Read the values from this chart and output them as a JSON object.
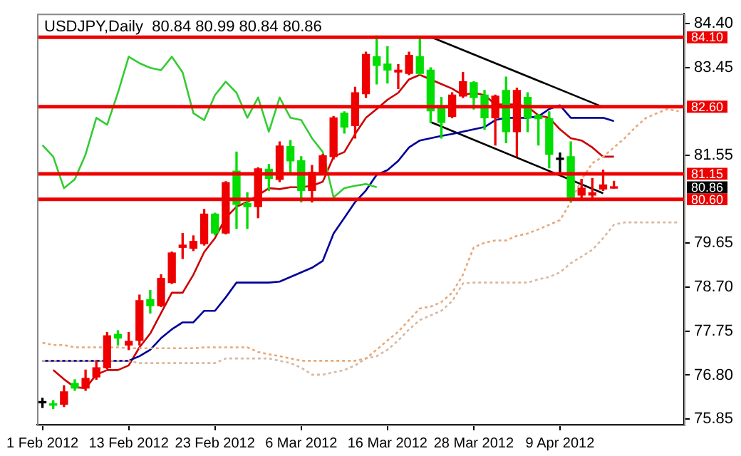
{
  "chart_data": {
    "type": "candlestick",
    "title": "USDJPY,Daily  80.84 80.99 80.84 80.86",
    "categories": [
      "1 Feb 2012",
      null,
      null,
      null,
      null,
      null,
      null,
      null,
      "13 Feb 2012",
      null,
      null,
      null,
      null,
      null,
      null,
      null,
      "23 Feb 2012",
      null,
      null,
      null,
      null,
      null,
      null,
      null,
      "6 Mar 2012",
      null,
      null,
      null,
      null,
      null,
      null,
      null,
      "16 Mar 2012",
      null,
      null,
      null,
      null,
      null,
      null,
      null,
      "28 Mar 2012",
      null,
      null,
      null,
      null,
      null,
      null,
      null,
      "9 Apr 2012",
      null,
      null,
      null,
      null,
      null,
      null,
      null,
      null,
      null,
      null,
      null
    ],
    "series": [
      {
        "type": "line",
        "color": "#e8a878",
        "line_style": "dotted",
        "values": [
          77.5,
          77.45,
          77.45,
          77.4,
          77.4,
          77.4,
          77.4,
          77.4,
          77.38,
          77.38,
          77.38,
          77.38,
          77.38,
          77.38,
          77.38,
          77.4,
          77.4,
          77.4,
          77.4,
          77.4,
          77.3,
          77.25,
          77.21,
          77.16,
          77.11,
          77.11,
          77.11,
          77.11,
          77.11,
          77.11,
          77.16,
          77.35,
          77.55,
          77.74,
          77.99,
          78.24,
          78.28,
          78.38,
          78.58,
          78.97,
          79.56,
          79.66,
          79.71,
          79.71,
          79.81,
          79.86,
          79.95,
          80.05,
          80.15,
          80.54,
          81.03,
          81.38,
          81.52,
          81.72,
          81.92,
          82.16,
          82.36,
          82.46,
          82.55,
          82.5
        ]
      },
      {
        "type": "line",
        "color": "#d8b8a0",
        "line_style": "dotted",
        "values": [
          77.11,
          77.11,
          77.11,
          77.11,
          77.11,
          77.11,
          77.11,
          77.11,
          77.11,
          77.06,
          77.06,
          77.06,
          77.06,
          77.06,
          77.06,
          77.06,
          77.06,
          77.16,
          77.16,
          77.16,
          77.16,
          77.16,
          77.11,
          77.06,
          76.96,
          76.81,
          76.81,
          76.86,
          76.91,
          77.01,
          77.16,
          77.21,
          77.35,
          77.55,
          77.79,
          77.99,
          78.09,
          78.19,
          78.4,
          78.78,
          78.8,
          78.8,
          78.8,
          78.8,
          78.8,
          78.8,
          78.87,
          78.92,
          79.02,
          79.22,
          79.36,
          79.51,
          79.76,
          80.05,
          80.1,
          80.1,
          80.1,
          80.1,
          80.1,
          80.1
        ]
      },
      {
        "type": "line",
        "color": "#33cc33",
        "values": [
          81.77,
          81.52,
          80.84,
          81.03,
          81.57,
          82.36,
          82.21,
          82.9,
          83.68,
          83.54,
          83.44,
          83.39,
          83.68,
          83.34,
          82.46,
          82.31,
          82.85,
          83.14,
          82.9,
          82.36,
          82.8,
          82.06,
          82.8,
          82.36,
          82.31,
          81.92,
          81.62,
          80.64,
          80.84,
          80.89,
          80.93,
          80.86,
          null,
          null,
          null,
          null,
          null,
          null,
          null,
          null,
          null,
          null,
          null,
          null,
          null,
          null,
          null,
          null,
          null,
          null,
          null,
          null,
          null,
          null,
          null,
          null,
          null,
          null,
          null,
          null
        ]
      },
      {
        "type": "line",
        "color": "#000099",
        "values": [
          77.11,
          77.11,
          77.11,
          77.11,
          77.11,
          77.11,
          null,
          77.11,
          77.11,
          77.21,
          77.35,
          77.6,
          77.79,
          77.94,
          77.94,
          78.19,
          78.19,
          78.48,
          78.8,
          78.8,
          78.8,
          78.8,
          78.82,
          78.92,
          79.02,
          79.12,
          79.27,
          79.86,
          80.2,
          80.54,
          80.79,
          81.13,
          81.23,
          81.43,
          81.72,
          81.87,
          81.92,
          81.97,
          82.01,
          82.06,
          82.11,
          82.16,
          82.31,
          82.36,
          82.36,
          82.36,
          82.39,
          82.55,
          82.63,
          82.36,
          82.36,
          82.36,
          82.36,
          82.29,
          null,
          null,
          null,
          null,
          null,
          null
        ]
      },
      {
        "type": "line",
        "color": "#cc0000",
        "values": [
          null,
          76.91,
          76.71,
          76.54,
          76.52,
          76.81,
          76.91,
          76.91,
          77.01,
          77.4,
          77.7,
          78.14,
          78.58,
          78.58,
          78.97,
          79.46,
          79.76,
          80.2,
          80.44,
          80.54,
          80.69,
          80.84,
          80.82,
          80.86,
          80.86,
          80.89,
          80.98,
          81.52,
          81.62,
          82.01,
          82.36,
          82.55,
          82.75,
          82.9,
          83.19,
          83.29,
          83.19,
          83.09,
          82.99,
          82.85,
          82.9,
          82.85,
          82.65,
          82.65,
          82.65,
          82.6,
          82.41,
          82.36,
          82.11,
          81.92,
          81.87,
          81.72,
          81.52,
          81.52,
          null,
          null,
          null,
          null,
          null,
          null
        ]
      },
      {
        "type": "line",
        "color": "#000000",
        "values": [
          null,
          null,
          null,
          null,
          null,
          null,
          null,
          null,
          null,
          null,
          null,
          null,
          null,
          null,
          null,
          null,
          null,
          null,
          null,
          null,
          null,
          null,
          null,
          null,
          null,
          null,
          null,
          null,
          null,
          null,
          null,
          null,
          null,
          null,
          null,
          null,
          84.11,
          null,
          null,
          null,
          null,
          null,
          null,
          null,
          null,
          null,
          null,
          null,
          null,
          null,
          null,
          null,
          82.59,
          null,
          null,
          null,
          null,
          null,
          null,
          null
        ]
      },
      {
        "type": "line",
        "color": "#000000",
        "values": [
          null,
          null,
          null,
          null,
          null,
          null,
          null,
          null,
          null,
          null,
          null,
          null,
          null,
          null,
          null,
          null,
          null,
          null,
          null,
          null,
          null,
          null,
          null,
          null,
          null,
          null,
          null,
          null,
          null,
          null,
          null,
          null,
          null,
          null,
          null,
          null,
          82.27,
          null,
          null,
          null,
          null,
          null,
          null,
          null,
          null,
          null,
          null,
          null,
          null,
          null,
          null,
          null,
          80.73,
          null,
          null,
          null,
          null,
          null,
          null,
          null
        ]
      },
      {
        "type": "candlestick",
        "ohlc": [
          [
            76.2,
            76.3,
            76.1,
            76.2
          ],
          [
            76.18,
            76.25,
            76.08,
            76.15
          ],
          [
            76.17,
            76.57,
            76.12,
            76.44
          ],
          [
            76.62,
            76.7,
            76.47,
            76.52
          ],
          [
            76.52,
            76.91,
            76.47,
            76.73
          ],
          [
            76.76,
            77.11,
            76.71,
            76.96
          ],
          [
            76.96,
            77.72,
            76.94,
            77.65
          ],
          [
            77.68,
            77.76,
            77.45,
            77.6
          ],
          [
            77.45,
            77.72,
            77.35,
            77.53
          ],
          [
            77.55,
            78.53,
            77.45,
            78.41
          ],
          [
            78.43,
            78.63,
            78.14,
            78.3
          ],
          [
            78.3,
            78.97,
            78.28,
            78.89
          ],
          [
            78.8,
            79.46,
            78.78,
            79.44
          ],
          [
            79.56,
            79.86,
            79.32,
            79.61
          ],
          [
            79.54,
            79.81,
            79.49,
            79.69
          ],
          [
            79.64,
            80.38,
            79.61,
            80.28
          ],
          [
            80.28,
            80.3,
            79.83,
            79.87
          ],
          [
            79.87,
            80.98,
            79.85,
            80.96
          ],
          [
            81.21,
            81.62,
            79.97,
            80.49
          ],
          [
            80.51,
            80.74,
            79.97,
            80.44
          ],
          [
            80.44,
            81.28,
            80.2,
            81.26
          ],
          [
            81.25,
            81.35,
            80.79,
            81.05
          ],
          [
            81.03,
            81.84,
            80.98,
            81.75
          ],
          [
            81.74,
            81.87,
            81.13,
            81.43
          ],
          [
            81.43,
            81.52,
            80.54,
            80.79
          ],
          [
            80.79,
            81.33,
            80.54,
            81.18
          ],
          [
            81.15,
            81.57,
            81.13,
            81.54
          ],
          [
            81.52,
            82.39,
            81.47,
            82.36
          ],
          [
            82.46,
            82.49,
            82.03,
            82.16
          ],
          [
            82.19,
            83.02,
            81.92,
            82.9
          ],
          [
            82.88,
            83.78,
            82.8,
            83.73
          ],
          [
            83.68,
            84.13,
            83.09,
            83.49
          ],
          [
            83.52,
            83.9,
            83.11,
            83.39
          ],
          [
            83.35,
            83.51,
            82.99,
            83.39
          ],
          [
            83.32,
            83.78,
            83.29,
            83.71
          ],
          [
            83.68,
            84.08,
            83.29,
            83.32
          ],
          [
            83.39,
            83.44,
            82.26,
            82.51
          ],
          [
            82.58,
            82.8,
            81.92,
            82.26
          ],
          [
            82.39,
            82.9,
            82.36,
            82.85
          ],
          [
            82.83,
            83.34,
            82.8,
            83.14
          ],
          [
            83.12,
            83.14,
            82.55,
            82.8
          ],
          [
            82.85,
            82.95,
            82.11,
            82.36
          ],
          [
            82.36,
            82.85,
            81.77,
            82.83
          ],
          [
            82.95,
            83.24,
            81.82,
            82.06
          ],
          [
            82.06,
            83.0,
            81.52,
            82.95
          ],
          [
            82.8,
            82.9,
            82.06,
            82.36
          ],
          [
            82.41,
            82.43,
            81.77,
            82.34
          ],
          [
            82.34,
            82.49,
            81.28,
            81.57
          ],
          [
            81.46,
            81.6,
            81.18,
            81.46
          ],
          [
            81.52,
            81.84,
            80.54,
            80.64
          ],
          [
            80.69,
            81.03,
            80.59,
            80.84
          ],
          [
            80.69,
            81.05,
            80.64,
            80.74
          ],
          [
            80.82,
            81.23,
            80.79,
            80.91
          ],
          [
            80.84,
            80.99,
            80.84,
            80.86
          ],
          null,
          null,
          null,
          null,
          null,
          null
        ],
        "colors": [
          "#000000",
          "#00dd00",
          "#ee0000",
          "#00dd00",
          "#ee0000",
          "#ee0000",
          "#ee0000",
          "#00dd00",
          "#ee0000",
          "#ee0000",
          "#00dd00",
          "#ee0000",
          "#ee0000",
          "#ee0000",
          "#ee0000",
          "#ee0000",
          "#00dd00",
          "#ee0000",
          "#00dd00",
          "#00dd00",
          "#ee0000",
          "#00dd00",
          "#ee0000",
          "#00dd00",
          "#00dd00",
          "#ee0000",
          "#ee0000",
          "#ee0000",
          "#00dd00",
          "#ee0000",
          "#ee0000",
          "#00dd00",
          "#00dd00",
          "#ee0000",
          "#ee0000",
          "#00dd00",
          "#00dd00",
          "#00dd00",
          "#ee0000",
          "#ee0000",
          "#00dd00",
          "#00dd00",
          "#ee0000",
          "#00dd00",
          "#ee0000",
          "#00dd00",
          "#00dd00",
          "#00dd00",
          "#000000",
          "#00dd00",
          "#ee0000",
          "#ee0000",
          "#ee0000",
          "#ee0000",
          null,
          null,
          null,
          null,
          null,
          null
        ]
      }
    ],
    "ylim": [
      75.73,
      84.61
    ],
    "yticks": [
      {
        "value": 84.4,
        "label": "84.40"
      },
      {
        "value": 83.45,
        "label": "83.45"
      },
      {
        "value": 81.55,
        "label": "81.55"
      },
      {
        "value": 79.65,
        "label": "79.65"
      },
      {
        "value": 78.7,
        "label": "78.70"
      },
      {
        "value": 77.75,
        "label": "77.75"
      },
      {
        "value": 76.8,
        "label": "76.80"
      },
      {
        "value": 75.85,
        "label": "75.85"
      }
    ],
    "ref_lines": [
      {
        "axis": "y",
        "value": 84.1,
        "label": "84.10",
        "color": "#ee0000"
      },
      {
        "axis": "y",
        "value": 82.6,
        "label": "82.60",
        "color": "#ee0000"
      },
      {
        "axis": "y",
        "value": 81.15,
        "label": "81.15",
        "color": "#ee0000"
      },
      {
        "axis": "y",
        "value": 80.6,
        "label": "80.60",
        "color": "#ee0000"
      }
    ],
    "annotations": [
      "80.86"
    ]
  }
}
